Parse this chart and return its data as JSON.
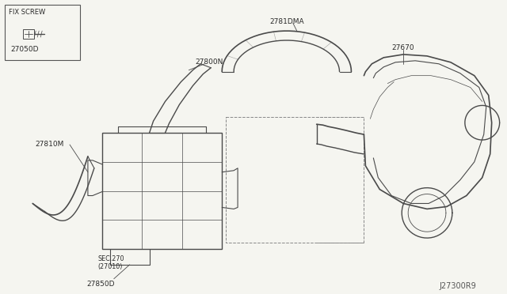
{
  "background_color": "#f5f5f0",
  "line_color": "#4a4a4a",
  "fig_width": 6.4,
  "fig_height": 3.72,
  "dpi": 100,
  "labels": {
    "fix_screw_title": "FIX SCREW",
    "fix_screw_part": "27050D",
    "label_27800N": "27800N",
    "label_27810MA": "2781DMA",
    "label_27670": "27670",
    "label_27810M": "27810M",
    "label_SEC270": "SEC.270",
    "label_27010": "(27010)",
    "label_27850": "27850D",
    "ref_num": "J27300R9"
  }
}
